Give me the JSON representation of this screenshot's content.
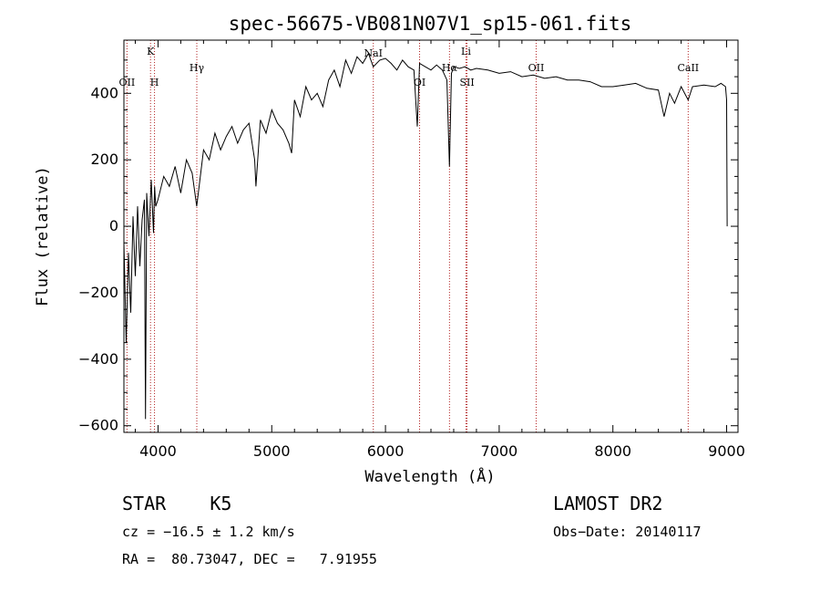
{
  "chart_data": {
    "type": "line",
    "title": "spec-56675-VB081N07V1_sp15-061.fits",
    "xlabel": "Wavelength (Å)",
    "ylabel": "Flux (relative)",
    "xlim": [
      3700,
      9100
    ],
    "ylim": [
      -620,
      560
    ],
    "xticks": [
      4000,
      5000,
      6000,
      7000,
      8000,
      9000
    ],
    "yticks": [
      -600,
      -400,
      -200,
      0,
      200,
      400
    ],
    "grid": false,
    "series": [
      {
        "x": [
          3700,
          3720,
          3740,
          3760,
          3780,
          3800,
          3820,
          3840,
          3860,
          3880,
          3890,
          3900,
          3920,
          3940,
          3960,
          3970,
          3980,
          4000,
          4050,
          4100,
          4150,
          4200,
          4250,
          4300,
          4340,
          4400,
          4450,
          4500,
          4550,
          4600,
          4650,
          4700,
          4750,
          4800,
          4850,
          4861,
          4900,
          4950,
          5000,
          5050,
          5100,
          5150,
          5175,
          5200,
          5250,
          5300,
          5350,
          5400,
          5450,
          5500,
          5550,
          5600,
          5650,
          5700,
          5750,
          5800,
          5850,
          5893,
          5950,
          6000,
          6050,
          6100,
          6150,
          6200,
          6250,
          6280,
          6300,
          6350,
          6400,
          6450,
          6500,
          6540,
          6563,
          6580,
          6600,
          6650,
          6700,
          6750,
          6800,
          6900,
          7000,
          7100,
          7200,
          7300,
          7400,
          7500,
          7600,
          7700,
          7800,
          7900,
          8000,
          8100,
          8200,
          8300,
          8400,
          8450,
          8498,
          8542,
          8600,
          8662,
          8700,
          8800,
          8900,
          8950,
          8990,
          9000,
          9005
        ],
        "y": [
          -50,
          -350,
          -80,
          -260,
          30,
          -150,
          60,
          -120,
          20,
          80,
          -580,
          100,
          -30,
          140,
          -20,
          120,
          60,
          80,
          150,
          120,
          180,
          100,
          200,
          160,
          60,
          230,
          200,
          280,
          230,
          270,
          300,
          250,
          290,
          310,
          200,
          120,
          320,
          280,
          350,
          310,
          290,
          250,
          220,
          380,
          330,
          420,
          380,
          400,
          360,
          440,
          470,
          420,
          500,
          460,
          510,
          490,
          520,
          480,
          500,
          505,
          490,
          470,
          500,
          480,
          470,
          300,
          490,
          480,
          470,
          485,
          470,
          440,
          180,
          460,
          480,
          475,
          480,
          470,
          475,
          470,
          460,
          465,
          450,
          455,
          445,
          450,
          440,
          440,
          435,
          420,
          420,
          425,
          430,
          415,
          410,
          330,
          400,
          370,
          420,
          380,
          420,
          425,
          420,
          430,
          420,
          380,
          0
        ]
      }
    ],
    "lines": [
      {
        "name": "OII",
        "x": 3727,
        "pos": "low"
      },
      {
        "name": "K",
        "x": 3934,
        "pos": "high"
      },
      {
        "name": "H",
        "x": 3969,
        "pos": "mid"
      },
      {
        "name": "Hγ",
        "x": 4341,
        "pos": "midhigh"
      },
      {
        "name": "NaI",
        "x": 5893,
        "pos": "top"
      },
      {
        "name": "OI",
        "x": 6300,
        "pos": "mid"
      },
      {
        "name": "Hα",
        "x": 6563,
        "pos": "midhigh"
      },
      {
        "name": "Li",
        "x": 6708,
        "pos": "high"
      },
      {
        "name": "SII",
        "x": 6717,
        "pos": "mid"
      },
      {
        "name": "OII",
        "x": 7325,
        "pos": "midhigh"
      },
      {
        "name": "CaII",
        "x": 8662,
        "pos": "midhigh"
      }
    ]
  },
  "info": {
    "class": "STAR    K5",
    "survey": "LAMOST DR2",
    "cz": "cz = −16.5 ± 1.2 km/s",
    "obsdate": "Obs−Date: 20140117",
    "radec": "RA =  80.73047, DEC =   7.91955"
  },
  "colors": {
    "spectrum": "#000000",
    "marker": "#b22222"
  }
}
